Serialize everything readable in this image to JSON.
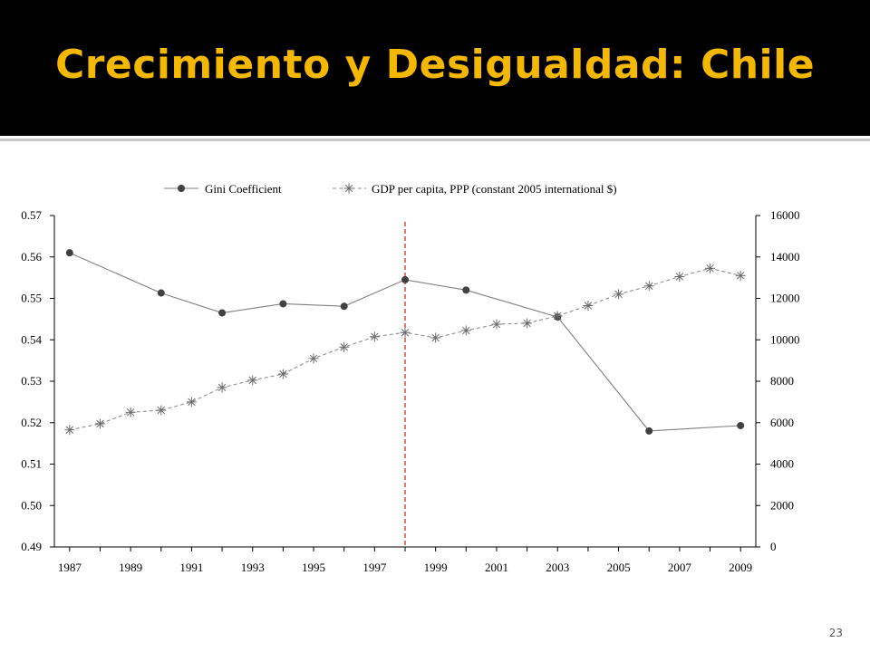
{
  "slide": {
    "title": "Crecimiento y Desigualdad: Chile",
    "page_number": "23"
  },
  "colors": {
    "title_bar": "#000000",
    "title_text": "#f5b800",
    "gini_series": "#808080",
    "gini_marker": "#404040",
    "gdp_series": "#909090",
    "reference_line": "#d03030"
  },
  "chart_data": {
    "type": "line",
    "legend_position": "top",
    "x_ticks": [
      "1987",
      "1989",
      "1991",
      "1993",
      "1995",
      "1997",
      "1999",
      "2001",
      "2003",
      "2005",
      "2007",
      "2009"
    ],
    "xlim": [
      1986.5,
      2009.5
    ],
    "ylim_left": [
      0.49,
      0.57
    ],
    "ylim_right": [
      0,
      16000
    ],
    "y_ticks_left": [
      "0.57",
      "0.56",
      "0.55",
      "0.54",
      "0.53",
      "0.52",
      "0.51",
      "0.50",
      "0.49"
    ],
    "y_ticks_right": [
      "16000",
      "14000",
      "12000",
      "10000",
      "8000",
      "6000",
      "4000",
      "2000",
      "0"
    ],
    "reference_line_x": 1998,
    "series": [
      {
        "name": "Gini Coefficient",
        "axis": "left",
        "style": "solid-dot",
        "x": [
          1987,
          1990,
          1992,
          1994,
          1996,
          1998,
          2000,
          2003,
          2006,
          2009
        ],
        "y": [
          0.561,
          0.5513,
          0.5465,
          0.5487,
          0.5481,
          0.5545,
          0.552,
          0.5455,
          0.518,
          0.5193
        ]
      },
      {
        "name": "GDP per capita, PPP (constant 2005 international $)",
        "axis": "right",
        "style": "dashed-star",
        "x": [
          1987,
          1988,
          1989,
          1990,
          1991,
          1992,
          1993,
          1994,
          1995,
          1996,
          1997,
          1998,
          1999,
          2000,
          2001,
          2002,
          2003,
          2004,
          2005,
          2006,
          2007,
          2008,
          2009
        ],
        "y": [
          5650,
          5950,
          6500,
          6600,
          7000,
          7700,
          8050,
          8350,
          9100,
          9650,
          10150,
          10350,
          10100,
          10450,
          10750,
          10800,
          11150,
          11650,
          12200,
          12600,
          13050,
          13450,
          13100
        ]
      }
    ]
  }
}
